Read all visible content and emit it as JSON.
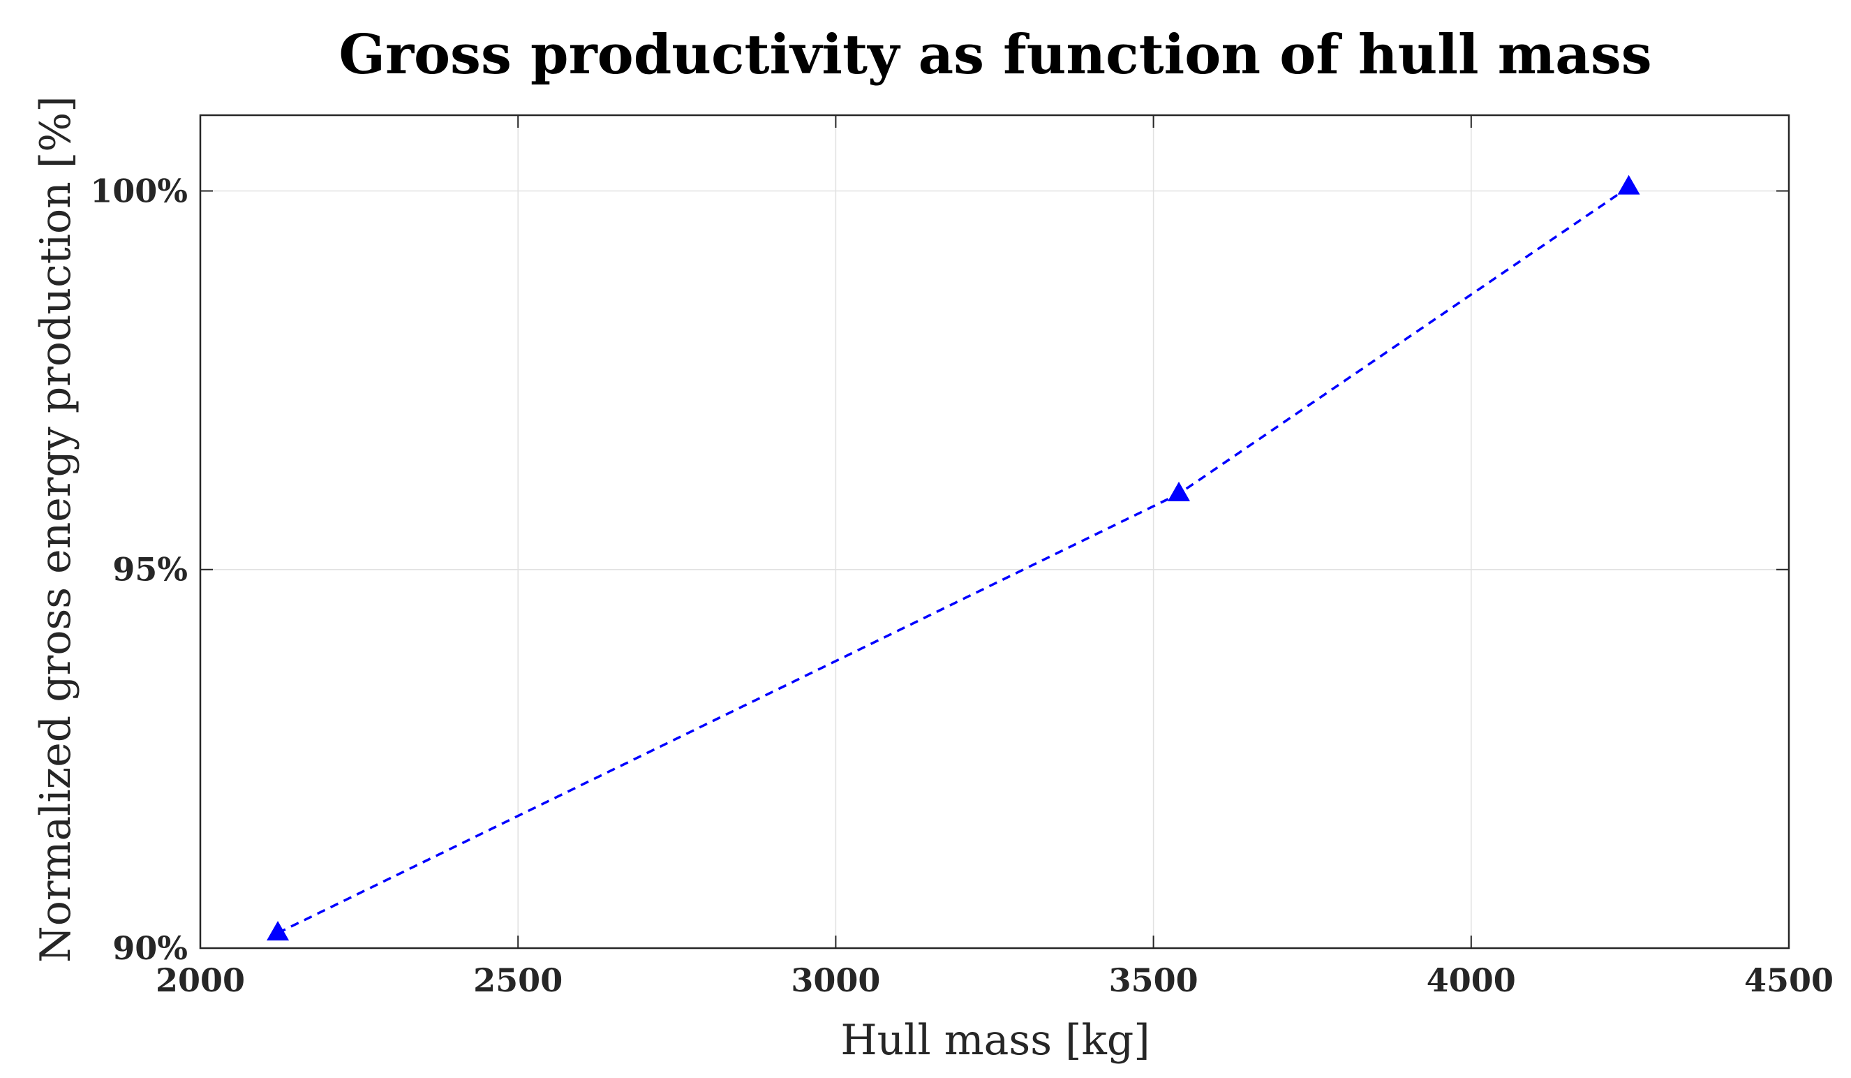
{
  "chart_data": {
    "type": "line",
    "title": "Gross productivity as function of hull mass",
    "xlabel": "Hull mass [kg]",
    "ylabel": "Normalized gross energy production [%]",
    "xlim": [
      2000,
      4500
    ],
    "ylim": [
      90,
      101
    ],
    "xticks": [
      2000,
      2500,
      3000,
      3500,
      4000,
      4500
    ],
    "xtick_labels": [
      "2000",
      "2500",
      "3000",
      "3500",
      "4000",
      "4500"
    ],
    "yticks": [
      90,
      95,
      100
    ],
    "ytick_labels": [
      "90%",
      "95%",
      "100%"
    ],
    "grid": true,
    "series": [
      {
        "x": [
          2122,
          3540,
          4248
        ],
        "y": [
          90.2,
          96.0,
          100.05
        ],
        "color": "#0000ff",
        "line_style": "dashed",
        "marker": "triangle-up"
      }
    ]
  }
}
